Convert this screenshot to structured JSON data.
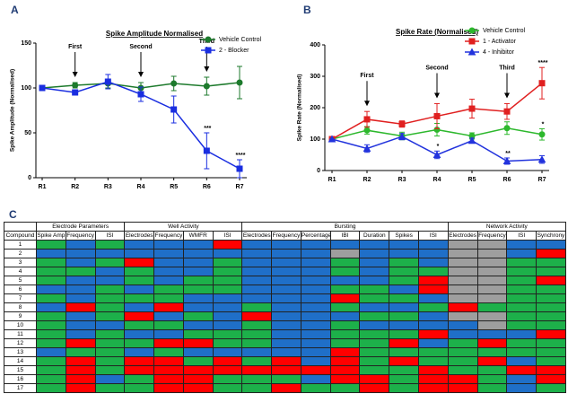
{
  "chart_data": [
    {
      "type": "line",
      "panel_label": "A",
      "title": "Spike Amplitude Normalised",
      "y_label": "Spike Amplitude (Normalised)",
      "categories": [
        "R1",
        "R2",
        "R3",
        "R4",
        "R5",
        "R6",
        "R7"
      ],
      "ylim": [
        0,
        150
      ],
      "yticks": [
        0,
        50,
        100,
        150
      ],
      "legend": "upper right",
      "series": [
        {
          "name": "Vehicle Control",
          "color": "#1d7a2c",
          "marker": "circle",
          "values": [
            100,
            103,
            105,
            100,
            105,
            102,
            106
          ],
          "errors": [
            0,
            3,
            5,
            6,
            8,
            10,
            18
          ]
        },
        {
          "name": "2 - Blocker",
          "color": "#1a2ee0",
          "marker": "square",
          "values": [
            100,
            95,
            107,
            93,
            76,
            30,
            10
          ],
          "errors": [
            0,
            3,
            8,
            8,
            15,
            20,
            10
          ]
        }
      ],
      "annotations": [
        {
          "text": "First",
          "category": "R2"
        },
        {
          "text": "Second",
          "category": "R4"
        },
        {
          "text": "Third",
          "category": "R6"
        }
      ],
      "significance": [
        {
          "text": "***",
          "category": "R6",
          "series": 1
        },
        {
          "text": "****",
          "category": "R7",
          "series": 1
        }
      ]
    },
    {
      "type": "line",
      "panel_label": "B",
      "title": "Spike Rate (Normalised)",
      "y_label": "Spike Rate (Normalised)",
      "categories": [
        "R1",
        "R2",
        "R3",
        "R4",
        "R5",
        "R6",
        "R7"
      ],
      "ylim": [
        0,
        400
      ],
      "yticks": [
        0,
        100,
        200,
        300,
        400
      ],
      "legend": "upper right",
      "series": [
        {
          "name": "Vehicle Control",
          "color": "#2db82d",
          "marker": "circle",
          "values": [
            100,
            128,
            110,
            130,
            110,
            135,
            115
          ],
          "errors": [
            0,
            12,
            12,
            20,
            10,
            20,
            18
          ]
        },
        {
          "name": "1 - Activator",
          "color": "#e02020",
          "marker": "square",
          "values": [
            100,
            163,
            148,
            173,
            197,
            188,
            278
          ],
          "errors": [
            0,
            25,
            10,
            40,
            30,
            25,
            50
          ]
        },
        {
          "name": "4 - Inhibitor",
          "color": "#2233dd",
          "marker": "triangle",
          "values": [
            100,
            70,
            108,
            50,
            95,
            30,
            35
          ],
          "errors": [
            0,
            12,
            10,
            12,
            8,
            10,
            12
          ]
        }
      ],
      "annotations": [
        {
          "text": "First",
          "category": "R2"
        },
        {
          "text": "Second",
          "category": "R4"
        },
        {
          "text": "Third",
          "category": "R6"
        }
      ],
      "significance": [
        {
          "text": "*",
          "category": "R4",
          "series": 2
        },
        {
          "text": "**",
          "category": "R6",
          "series": 2
        },
        {
          "text": "*",
          "category": "R7",
          "series": 0
        },
        {
          "text": "****",
          "category": "R7",
          "series": 1
        }
      ]
    }
  ],
  "heatmap": {
    "panel_label": "C",
    "row_header": "Compound",
    "column_groups": [
      {
        "name": "Electrode Parameters",
        "columns": [
          "Spike Amp",
          "Frequency",
          "ISI"
        ]
      },
      {
        "name": "Well Activity",
        "columns": [
          "Electrodes",
          "Frequency",
          "WMFR",
          "ISI"
        ]
      },
      {
        "name": "Bursting",
        "columns": [
          "Electrodes",
          "Frequency",
          "Percentage",
          "IBI",
          "Duration",
          "Spikes",
          "ISI"
        ]
      },
      {
        "name": "Network Activity",
        "columns": [
          "Electrodes",
          "Frequency",
          "ISI",
          "Synchrony"
        ]
      }
    ],
    "rows": [
      {
        "label": "1",
        "cells": [
          "#1db04a",
          "#1f6fc8",
          "#1db04a",
          "#1f6fc8",
          "#1f6fc8",
          "#1f6fc8",
          "#ff0000",
          "#1f6fc8",
          "#1f6fc8",
          "#1f6fc8",
          "#1f6fc8",
          "#1f6fc8",
          "#1f6fc8",
          "#1f6fc8",
          "#9e9e9e",
          "#9e9e9e",
          "#1f6fc8",
          "#1f6fc8"
        ]
      },
      {
        "label": "2",
        "cells": [
          "#1f6fc8",
          "#1f6fc8",
          "#1f6fc8",
          "#1f6fc8",
          "#1f6fc8",
          "#1f6fc8",
          "#1f6fc8",
          "#1f6fc8",
          "#1f6fc8",
          "#1f6fc8",
          "#9e9e9e",
          "#1f6fc8",
          "#1f6fc8",
          "#1f6fc8",
          "#9e9e9e",
          "#9e9e9e",
          "#1f6fc8",
          "#ff0000"
        ]
      },
      {
        "label": "3",
        "cells": [
          "#1db04a",
          "#1f6fc8",
          "#1db04a",
          "#ff0000",
          "#1f6fc8",
          "#1f6fc8",
          "#1db04a",
          "#1f6fc8",
          "#1f6fc8",
          "#1f6fc8",
          "#1db04a",
          "#1f6fc8",
          "#1db04a",
          "#1f6fc8",
          "#9e9e9e",
          "#9e9e9e",
          "#1db04a",
          "#1db04a"
        ]
      },
      {
        "label": "4",
        "cells": [
          "#1db04a",
          "#1db04a",
          "#1f6fc8",
          "#1db04a",
          "#1f6fc8",
          "#1f6fc8",
          "#1db04a",
          "#1f6fc8",
          "#1f6fc8",
          "#1f6fc8",
          "#1db04a",
          "#1f6fc8",
          "#1db04a",
          "#1db04a",
          "#9e9e9e",
          "#9e9e9e",
          "#1db04a",
          "#1db04a"
        ]
      },
      {
        "label": "5",
        "cells": [
          "#1db04a",
          "#1f6fc8",
          "#1f6fc8",
          "#1db04a",
          "#1f6fc8",
          "#1db04a",
          "#1db04a",
          "#1f6fc8",
          "#1f6fc8",
          "#1f6fc8",
          "#1f6fc8",
          "#1f6fc8",
          "#1db04a",
          "#ff0000",
          "#9e9e9e",
          "#9e9e9e",
          "#1db04a",
          "#ff0000"
        ]
      },
      {
        "label": "6",
        "cells": [
          "#1f6fc8",
          "#1f6fc8",
          "#1db04a",
          "#1f6fc8",
          "#1db04a",
          "#1db04a",
          "#1db04a",
          "#1f6fc8",
          "#1f6fc8",
          "#1f6fc8",
          "#1db04a",
          "#1db04a",
          "#1f6fc8",
          "#ff0000",
          "#9e9e9e",
          "#9e9e9e",
          "#1db04a",
          "#1db04a"
        ]
      },
      {
        "label": "7",
        "cells": [
          "#1db04a",
          "#1f6fc8",
          "#1db04a",
          "#1db04a",
          "#1db04a",
          "#1f6fc8",
          "#1f6fc8",
          "#1f6fc8",
          "#1f6fc8",
          "#1f6fc8",
          "#ff0000",
          "#1db04a",
          "#1db04a",
          "#1f6fc8",
          "#9e9e9e",
          "#9e9e9e",
          "#1db04a",
          "#1db04a"
        ]
      },
      {
        "label": "8",
        "cells": [
          "#1f6fc8",
          "#ff0000",
          "#1db04a",
          "#1f6fc8",
          "#ff0000",
          "#1f6fc8",
          "#1f6fc8",
          "#1db04a",
          "#1f6fc8",
          "#1f6fc8",
          "#1db04a",
          "#1f6fc8",
          "#1f6fc8",
          "#1db04a",
          "#ff0000",
          "#1db04a",
          "#1db04a",
          "#1db04a"
        ]
      },
      {
        "label": "9",
        "cells": [
          "#1db04a",
          "#1f6fc8",
          "#1db04a",
          "#ff0000",
          "#1f6fc8",
          "#1db04a",
          "#1f6fc8",
          "#ff0000",
          "#1f6fc8",
          "#1f6fc8",
          "#1f6fc8",
          "#1db04a",
          "#1db04a",
          "#1f6fc8",
          "#9e9e9e",
          "#9e9e9e",
          "#1db04a",
          "#1db04a"
        ]
      },
      {
        "label": "10",
        "cells": [
          "#1db04a",
          "#1f6fc8",
          "#1f6fc8",
          "#1db04a",
          "#1db04a",
          "#1f6fc8",
          "#1f6fc8",
          "#1db04a",
          "#1f6fc8",
          "#1f6fc8",
          "#1db04a",
          "#1f6fc8",
          "#1f6fc8",
          "#1f6fc8",
          "#1f6fc8",
          "#9e9e9e",
          "#1db04a",
          "#1db04a"
        ]
      },
      {
        "label": "11",
        "cells": [
          "#1db04a",
          "#1f6fc8",
          "#1db04a",
          "#1f6fc8",
          "#1f6fc8",
          "#1db04a",
          "#1db04a",
          "#1db04a",
          "#1f6fc8",
          "#1f6fc8",
          "#1db04a",
          "#1db04a",
          "#1db04a",
          "#ff0000",
          "#1f6fc8",
          "#1f6fc8",
          "#1f6fc8",
          "#ff0000"
        ]
      },
      {
        "label": "12",
        "cells": [
          "#1db04a",
          "#ff0000",
          "#1db04a",
          "#1db04a",
          "#ff0000",
          "#ff0000",
          "#1db04a",
          "#1db04a",
          "#1f6fc8",
          "#1f6fc8",
          "#1db04a",
          "#1db04a",
          "#ff0000",
          "#1f6fc8",
          "#1db04a",
          "#ff0000",
          "#1db04a",
          "#1db04a"
        ]
      },
      {
        "label": "13",
        "cells": [
          "#1f6fc8",
          "#1db04a",
          "#1db04a",
          "#1f6fc8",
          "#1db04a",
          "#1f6fc8",
          "#1f6fc8",
          "#1f6fc8",
          "#1f6fc8",
          "#1f6fc8",
          "#ff0000",
          "#1db04a",
          "#1db04a",
          "#1db04a",
          "#1db04a",
          "#1db04a",
          "#1db04a",
          "#1db04a"
        ]
      },
      {
        "label": "14",
        "cells": [
          "#1db04a",
          "#ff0000",
          "#1db04a",
          "#ff0000",
          "#ff0000",
          "#1db04a",
          "#ff0000",
          "#1db04a",
          "#ff0000",
          "#1f6fc8",
          "#ff0000",
          "#1db04a",
          "#ff0000",
          "#1db04a",
          "#1db04a",
          "#ff0000",
          "#1f6fc8",
          "#1db04a"
        ]
      },
      {
        "label": "15",
        "cells": [
          "#1db04a",
          "#ff0000",
          "#1db04a",
          "#ff0000",
          "#ff0000",
          "#ff0000",
          "#ff0000",
          "#ff0000",
          "#ff0000",
          "#ff0000",
          "#ff0000",
          "#1db04a",
          "#1db04a",
          "#ff0000",
          "#1db04a",
          "#1db04a",
          "#ff0000",
          "#ff0000"
        ]
      },
      {
        "label": "16",
        "cells": [
          "#1db04a",
          "#ff0000",
          "#1f6fc8",
          "#1db04a",
          "#ff0000",
          "#ff0000",
          "#1db04a",
          "#1db04a",
          "#1db04a",
          "#1f6fc8",
          "#ff0000",
          "#ff0000",
          "#1db04a",
          "#ff0000",
          "#ff0000",
          "#1db04a",
          "#1f6fc8",
          "#ff0000"
        ]
      },
      {
        "label": "17",
        "cells": [
          "#1db04a",
          "#ff0000",
          "#1db04a",
          "#1db04a",
          "#ff0000",
          "#ff0000",
          "#1db04a",
          "#1db04a",
          "#ff0000",
          "#1db04a",
          "#1db04a",
          "#ff0000",
          "#1db04a",
          "#ff0000",
          "#ff0000",
          "#1db04a",
          "#1f6fc8",
          "#1db04a"
        ]
      }
    ]
  }
}
